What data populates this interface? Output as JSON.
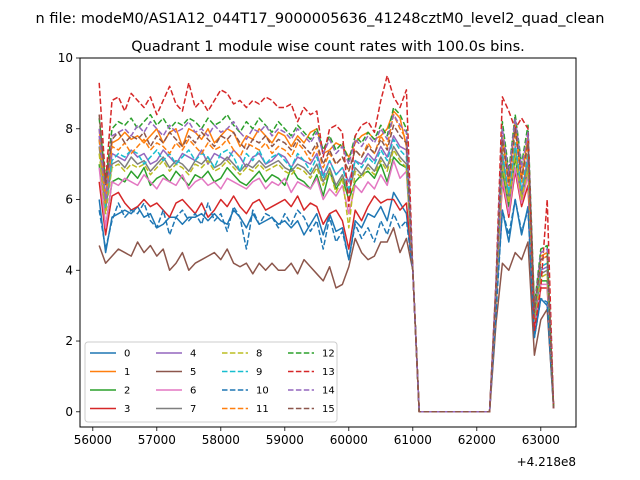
{
  "chart_data": {
    "type": "line",
    "suptitle": "n file: modeM0/AS1A12_044T17_9000005636_41248cztM0_level2_quad_clean",
    "title": "Quadrant 1 module wise count rates with 100.0s bins.",
    "xlabel": "",
    "ylabel": "",
    "x_offset_label": "+4.218e8",
    "xlim": [
      55800,
      63550
    ],
    "ylim": [
      -0.43,
      10
    ],
    "xticks": [
      56000,
      57000,
      58000,
      59000,
      60000,
      61000,
      62000,
      63000
    ],
    "xtick_labels": [
      "56000",
      "57000",
      "58000",
      "59000",
      "60000",
      "61000",
      "62000",
      "63000"
    ],
    "yticks": [
      0,
      2,
      4,
      6,
      8,
      10
    ],
    "ytick_labels": [
      "0",
      "2",
      "4",
      "6",
      "8",
      "10"
    ],
    "grid": false,
    "legend_placement": "lower-left",
    "legend_columns": 4,
    "x": [
      56100,
      56200,
      56300,
      56400,
      56500,
      56600,
      56700,
      56800,
      56900,
      57000,
      57100,
      57200,
      57300,
      57400,
      57500,
      57600,
      57700,
      57800,
      57900,
      58000,
      58100,
      58200,
      58300,
      58400,
      58500,
      58600,
      58700,
      58800,
      58900,
      59000,
      59100,
      59200,
      59300,
      59400,
      59500,
      59600,
      59700,
      59800,
      59900,
      60000,
      60100,
      60200,
      60300,
      60400,
      60500,
      60600,
      60700,
      60800,
      60900,
      61000,
      61100,
      61200,
      62200,
      62300,
      62400,
      62500,
      62600,
      62700,
      62800,
      62900,
      63000,
      63100,
      63200
    ],
    "series": [
      {
        "name": "0",
        "color": "#1f77b4",
        "dash": "solid",
        "values": [
          6.0,
          4.5,
          5.5,
          5.6,
          5.7,
          5.6,
          5.8,
          5.5,
          5.6,
          5.2,
          5.3,
          5.5,
          5.5,
          5.3,
          5.5,
          5.5,
          5.6,
          5.4,
          5.6,
          5.4,
          5.3,
          5.7,
          5.5,
          5.2,
          5.6,
          5.3,
          5.4,
          5.5,
          5.3,
          5.4,
          5.2,
          5.4,
          5.0,
          5.3,
          5.6,
          5.0,
          5.6,
          5.1,
          5.2,
          4.3,
          5.4,
          5.2,
          5.6,
          5.5,
          5.8,
          5.4,
          6.2,
          5.9,
          5.6,
          4.0,
          0.0,
          0.0,
          0.0,
          3.0,
          5.7,
          4.8,
          6.0,
          5.0,
          5.8,
          2.1,
          3.2,
          3.0,
          0.1
        ]
      },
      {
        "name": "1",
        "color": "#ff7f0e",
        "dash": "solid",
        "values": [
          8.0,
          6.1,
          7.6,
          7.7,
          7.9,
          7.7,
          7.8,
          7.6,
          7.8,
          8.0,
          7.6,
          7.9,
          8.0,
          7.5,
          8.0,
          7.9,
          7.7,
          8.0,
          7.6,
          7.8,
          8.0,
          7.9,
          7.5,
          7.8,
          7.7,
          8.0,
          7.8,
          7.6,
          7.9,
          7.8,
          7.5,
          7.8,
          7.6,
          7.9,
          8.0,
          7.3,
          7.4,
          7.6,
          7.5,
          7.2,
          7.6,
          7.8,
          7.9,
          7.7,
          7.8,
          8.0,
          8.5,
          8.3,
          7.5,
          4.0,
          0.0,
          0.0,
          0.0,
          3.4,
          7.8,
          6.5,
          8.2,
          6.6,
          7.8,
          2.9,
          4.4,
          4.5,
          0.1
        ]
      },
      {
        "name": "2",
        "color": "#2ca02c",
        "dash": "solid",
        "values": [
          7.0,
          5.2,
          6.5,
          6.6,
          6.5,
          6.8,
          6.6,
          6.9,
          6.4,
          6.6,
          6.7,
          6.5,
          6.8,
          6.6,
          6.4,
          6.7,
          6.6,
          6.8,
          6.5,
          6.6,
          6.9,
          6.7,
          6.5,
          6.4,
          6.6,
          6.8,
          6.5,
          6.7,
          6.6,
          6.4,
          6.9,
          6.6,
          6.5,
          6.3,
          6.7,
          6.1,
          6.8,
          6.3,
          6.6,
          6.0,
          6.5,
          6.7,
          6.8,
          6.6,
          7.0,
          6.5,
          7.2,
          7.0,
          6.9,
          4.0,
          0.0,
          0.0,
          0.0,
          3.1,
          6.8,
          5.8,
          7.2,
          5.9,
          6.9,
          2.5,
          3.7,
          3.7,
          0.1
        ]
      },
      {
        "name": "3",
        "color": "#d62728",
        "dash": "solid",
        "values": [
          6.5,
          5.0,
          6.1,
          6.2,
          5.9,
          5.7,
          5.8,
          6.0,
          5.8,
          5.9,
          5.7,
          5.5,
          5.9,
          6.0,
          5.8,
          5.6,
          5.9,
          5.5,
          5.7,
          6.0,
          5.8,
          6.1,
          5.8,
          5.6,
          5.9,
          6.0,
          5.7,
          5.8,
          5.9,
          6.0,
          5.8,
          6.1,
          5.7,
          5.9,
          5.8,
          5.3,
          5.6,
          5.7,
          5.4,
          4.6,
          5.7,
          5.4,
          5.8,
          6.1,
          5.9,
          6.0,
          6.0,
          5.7,
          5.9,
          4.0,
          0.0,
          0.0,
          0.0,
          3.1,
          6.5,
          5.5,
          6.8,
          5.8,
          6.4,
          2.3,
          3.5,
          3.5,
          0.1
        ]
      },
      {
        "name": "4",
        "color": "#9467bd",
        "dash": "solid",
        "values": [
          7.8,
          5.9,
          7.3,
          7.2,
          7.1,
          7.4,
          7.2,
          7.3,
          7.0,
          7.1,
          7.4,
          7.2,
          7.0,
          7.3,
          7.2,
          7.1,
          7.4,
          7.0,
          7.3,
          7.2,
          7.1,
          7.4,
          7.2,
          6.9,
          7.2,
          7.3,
          7.0,
          7.1,
          7.3,
          7.2,
          6.9,
          7.2,
          7.1,
          7.0,
          7.3,
          6.7,
          7.1,
          6.7,
          6.9,
          6.5,
          7.1,
          7.0,
          7.3,
          7.1,
          7.5,
          7.2,
          7.8,
          7.5,
          7.4,
          4.0,
          0.0,
          0.0,
          0.0,
          3.3,
          7.3,
          6.1,
          7.5,
          6.2,
          7.2,
          2.7,
          4.0,
          4.1,
          0.1
        ]
      },
      {
        "name": "5",
        "color": "#8c564b",
        "dash": "solid",
        "values": [
          4.7,
          4.2,
          4.4,
          4.6,
          4.5,
          4.4,
          4.8,
          4.5,
          4.7,
          4.4,
          4.6,
          4.0,
          4.2,
          4.5,
          4.0,
          4.2,
          4.3,
          4.4,
          4.5,
          4.3,
          4.6,
          4.2,
          4.1,
          4.2,
          3.9,
          4.2,
          4.0,
          4.2,
          4.0,
          4.0,
          4.2,
          3.9,
          4.3,
          4.1,
          3.9,
          3.7,
          4.1,
          3.5,
          3.6,
          4.1,
          4.9,
          4.5,
          4.3,
          4.4,
          4.8,
          4.8,
          5.2,
          4.5,
          4.9,
          4.0,
          0.0,
          0.0,
          0.0,
          2.5,
          4.2,
          4.0,
          4.5,
          4.3,
          4.8,
          1.6,
          2.6,
          2.9,
          0.1
        ]
      },
      {
        "name": "6",
        "color": "#e377c2",
        "dash": "solid",
        "values": [
          6.9,
          5.2,
          6.5,
          6.4,
          6.6,
          6.5,
          6.4,
          6.7,
          6.5,
          6.3,
          6.6,
          6.5,
          6.4,
          6.7,
          6.3,
          6.5,
          6.6,
          6.4,
          6.5,
          6.3,
          6.6,
          6.5,
          6.4,
          6.3,
          6.5,
          6.6,
          6.3,
          6.5,
          6.4,
          6.6,
          6.2,
          6.5,
          6.4,
          6.3,
          6.6,
          6.0,
          6.3,
          6.1,
          6.4,
          5.6,
          6.4,
          6.2,
          6.5,
          6.3,
          6.7,
          6.4,
          7.1,
          6.6,
          6.8,
          4.0,
          0.0,
          0.0,
          0.0,
          3.0,
          6.6,
          5.6,
          6.9,
          5.9,
          6.7,
          2.4,
          3.6,
          3.6,
          0.1
        ]
      },
      {
        "name": "7",
        "color": "#7f7f7f",
        "dash": "solid",
        "values": [
          7.5,
          5.7,
          7.0,
          7.1,
          6.9,
          7.2,
          7.0,
          7.1,
          6.8,
          7.0,
          7.2,
          6.9,
          7.1,
          7.0,
          6.8,
          7.1,
          7.0,
          7.2,
          6.9,
          7.0,
          7.2,
          7.0,
          6.8,
          7.0,
          6.9,
          7.1,
          6.9,
          7.0,
          7.1,
          6.9,
          6.8,
          7.0,
          6.9,
          6.7,
          7.0,
          6.5,
          6.9,
          6.4,
          6.7,
          6.2,
          6.9,
          6.7,
          7.0,
          6.8,
          7.2,
          6.9,
          7.5,
          7.2,
          7.0,
          4.0,
          0.0,
          0.0,
          0.0,
          3.3,
          7.1,
          6.0,
          7.4,
          6.1,
          7.0,
          2.6,
          3.9,
          4.0,
          0.1
        ]
      },
      {
        "name": "8",
        "color": "#bcbd22",
        "dash": "dashed",
        "values": [
          7.3,
          5.6,
          6.9,
          7.0,
          6.8,
          7.0,
          6.9,
          7.0,
          6.7,
          6.9,
          7.1,
          6.8,
          7.0,
          6.9,
          6.7,
          7.0,
          6.9,
          7.1,
          6.8,
          6.9,
          7.1,
          6.9,
          6.7,
          6.9,
          6.8,
          7.0,
          6.8,
          6.9,
          7.0,
          6.8,
          6.7,
          6.9,
          6.8,
          6.6,
          6.9,
          6.4,
          6.8,
          6.2,
          6.6,
          5.2,
          6.8,
          6.6,
          6.9,
          6.7,
          7.1,
          6.8,
          7.4,
          7.1,
          6.9,
          4.0,
          0.0,
          0.0,
          0.0,
          3.2,
          7.0,
          5.9,
          7.3,
          6.0,
          6.9,
          2.6,
          3.8,
          3.9,
          0.1
        ]
      },
      {
        "name": "9",
        "color": "#17becf",
        "dash": "dashed",
        "values": [
          7.7,
          5.8,
          7.1,
          7.3,
          7.2,
          7.4,
          7.3,
          7.0,
          7.2,
          7.4,
          7.1,
          7.3,
          7.0,
          7.2,
          7.4,
          7.1,
          7.3,
          7.2,
          6.9,
          7.3,
          7.4,
          7.2,
          6.8,
          7.3,
          7.1,
          7.4,
          7.0,
          7.2,
          7.3,
          7.1,
          6.9,
          7.3,
          7.1,
          6.8,
          7.2,
          6.6,
          7.1,
          6.7,
          6.9,
          6.3,
          7.1,
          6.9,
          7.2,
          7.0,
          7.4,
          7.1,
          7.7,
          7.4,
          7.2,
          4.0,
          0.0,
          0.0,
          0.0,
          3.4,
          7.3,
          6.2,
          7.6,
          6.3,
          7.3,
          2.7,
          4.1,
          4.2,
          0.1
        ]
      },
      {
        "name": "10",
        "color": "#1f77b4",
        "dash": "dashed",
        "values": [
          5.7,
          4.6,
          5.4,
          5.9,
          5.5,
          5.7,
          5.6,
          5.9,
          5.4,
          5.2,
          5.7,
          5.0,
          5.5,
          5.7,
          5.4,
          5.6,
          5.3,
          5.9,
          5.4,
          5.6,
          5.1,
          5.8,
          5.5,
          4.6,
          5.7,
          5.3,
          5.6,
          5.5,
          5.2,
          5.6,
          5.3,
          5.7,
          5.5,
          5.1,
          5.4,
          4.6,
          5.5,
          4.8,
          5.1,
          4.3,
          5.3,
          4.9,
          5.2,
          4.8,
          5.4,
          5.0,
          5.6,
          5.2,
          5.4,
          4.0,
          0.0,
          0.0,
          0.0,
          2.8,
          5.7,
          5.0,
          6.0,
          5.1,
          5.7,
          2.1,
          3.2,
          3.1,
          0.1
        ]
      },
      {
        "name": "11",
        "color": "#ff7f0e",
        "dash": "dashed",
        "values": [
          7.7,
          5.9,
          7.5,
          7.4,
          7.6,
          7.3,
          7.5,
          7.7,
          7.4,
          7.6,
          7.5,
          7.3,
          7.6,
          7.4,
          7.7,
          7.5,
          7.3,
          7.6,
          7.4,
          7.5,
          7.7,
          7.4,
          7.2,
          7.6,
          7.5,
          7.4,
          7.6,
          7.3,
          7.5,
          7.4,
          7.2,
          7.6,
          7.4,
          7.1,
          7.5,
          6.9,
          7.3,
          7.0,
          7.2,
          6.8,
          7.4,
          7.2,
          7.6,
          7.3,
          7.8,
          7.5,
          8.4,
          8.0,
          7.7,
          4.0,
          0.0,
          0.0,
          0.0,
          3.5,
          7.6,
          6.4,
          7.9,
          6.5,
          7.5,
          2.8,
          4.3,
          4.4,
          0.1
        ]
      },
      {
        "name": "12",
        "color": "#2ca02c",
        "dash": "dashed",
        "values": [
          8.3,
          6.5,
          8.0,
          8.2,
          8.1,
          8.3,
          8.0,
          8.2,
          8.4,
          8.1,
          8.3,
          8.0,
          8.2,
          8.1,
          8.3,
          8.2,
          8.0,
          8.3,
          8.1,
          8.2,
          8.4,
          8.1,
          7.9,
          8.2,
          8.0,
          8.3,
          8.1,
          7.9,
          8.2,
          8.0,
          7.8,
          8.1,
          7.9,
          7.7,
          8.0,
          7.4,
          7.8,
          7.4,
          7.6,
          7.1,
          7.8,
          7.6,
          7.9,
          7.7,
          8.1,
          7.8,
          8.6,
          8.4,
          8.0,
          4.0,
          0.0,
          0.0,
          0.0,
          3.6,
          8.2,
          6.8,
          8.4,
          7.0,
          8.1,
          3.0,
          4.6,
          4.7,
          0.1
        ]
      },
      {
        "name": "13",
        "color": "#d62728",
        "dash": "dashed",
        "values": [
          9.3,
          6.5,
          8.8,
          8.9,
          8.5,
          9.0,
          8.8,
          8.6,
          8.9,
          8.4,
          8.8,
          9.2,
          8.7,
          8.5,
          9.3,
          8.6,
          8.8,
          8.5,
          8.8,
          9.1,
          9.0,
          8.7,
          8.8,
          8.6,
          8.8,
          8.7,
          8.9,
          8.8,
          8.6,
          8.6,
          8.7,
          8.2,
          8.6,
          8.4,
          8.5,
          7.2,
          8.0,
          8.1,
          7.9,
          5.8,
          7.8,
          8.1,
          8.2,
          7.9,
          8.8,
          9.5,
          8.9,
          8.6,
          9.1,
          4.0,
          0.0,
          0.0,
          0.0,
          3.7,
          8.9,
          8.5,
          8.0,
          8.3,
          8.0,
          2.3,
          3.5,
          6.0,
          0.1
        ]
      },
      {
        "name": "14",
        "color": "#9467bd",
        "dash": "dashed",
        "values": [
          8.0,
          6.0,
          7.8,
          7.9,
          8.0,
          7.8,
          8.1,
          7.9,
          8.2,
          8.0,
          7.8,
          8.1,
          7.9,
          8.0,
          8.2,
          7.9,
          8.0,
          7.8,
          8.1,
          7.9,
          8.0,
          8.2,
          7.9,
          7.7,
          8.0,
          7.9,
          8.1,
          7.8,
          8.0,
          7.9,
          7.7,
          8.0,
          7.8,
          7.6,
          7.9,
          7.3,
          7.7,
          7.3,
          7.5,
          7.0,
          7.7,
          7.5,
          7.8,
          7.6,
          8.0,
          7.7,
          8.4,
          8.1,
          7.9,
          4.0,
          0.0,
          0.0,
          0.0,
          3.6,
          8.0,
          6.7,
          8.3,
          6.9,
          7.9,
          2.9,
          4.5,
          4.6,
          0.1
        ]
      },
      {
        "name": "15",
        "color": "#8c564b",
        "dash": "dashed",
        "values": [
          8.4,
          6.4,
          7.7,
          7.9,
          7.6,
          7.8,
          7.7,
          7.9,
          7.5,
          7.8,
          7.6,
          7.9,
          7.7,
          7.5,
          7.8,
          7.6,
          7.9,
          7.7,
          7.5,
          7.8,
          7.7,
          7.9,
          7.6,
          7.4,
          7.7,
          7.6,
          7.8,
          7.5,
          7.7,
          7.6,
          7.4,
          7.7,
          7.5,
          7.3,
          7.6,
          7.0,
          7.4,
          7.0,
          7.2,
          6.8,
          7.4,
          7.2,
          7.5,
          7.3,
          7.7,
          7.4,
          8.1,
          7.8,
          7.6,
          4.0,
          0.0,
          0.0,
          0.0,
          3.5,
          7.7,
          6.5,
          8.0,
          6.6,
          7.6,
          2.8,
          4.3,
          4.4,
          0.1
        ]
      }
    ]
  }
}
